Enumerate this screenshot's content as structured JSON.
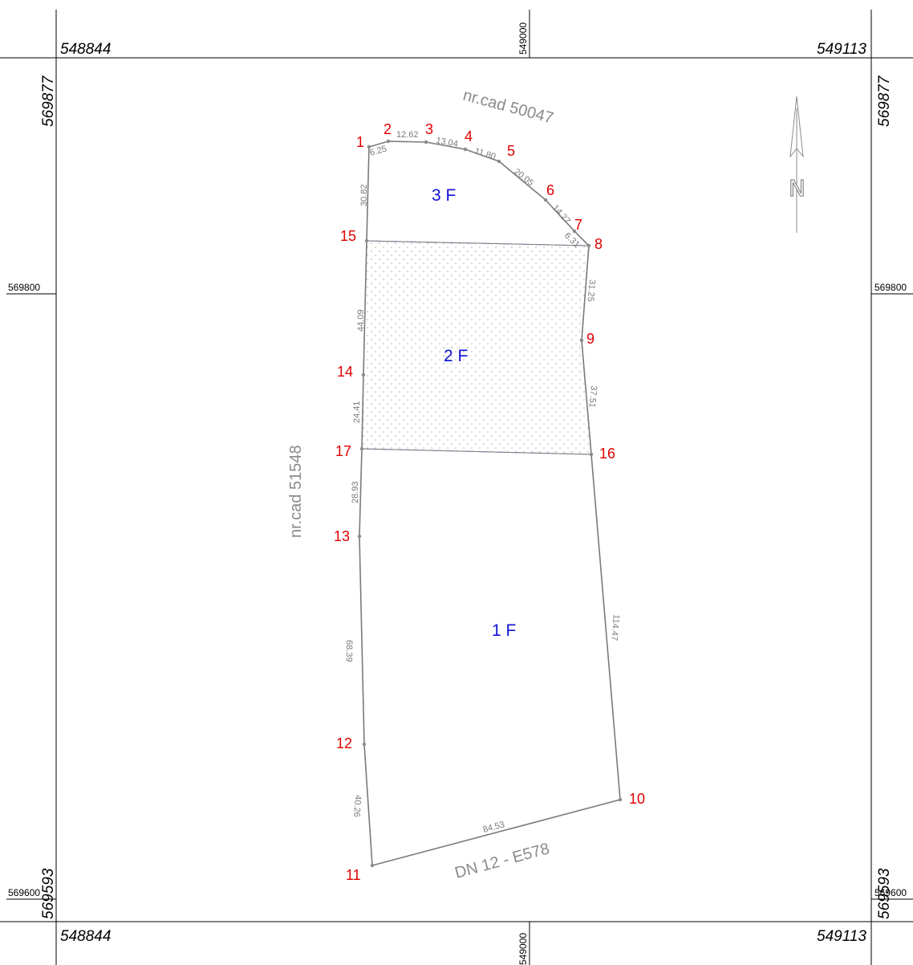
{
  "frame": {
    "x_left": "548844",
    "x_right": "549113",
    "x_mid": "549000",
    "y_top": "569877",
    "y_bottom": "569593",
    "y_mid": "569800",
    "y_low": "569600"
  },
  "vertices": [
    {
      "id": "v1",
      "label": "1"
    },
    {
      "id": "v2",
      "label": "2"
    },
    {
      "id": "v3",
      "label": "3"
    },
    {
      "id": "v4",
      "label": "4"
    },
    {
      "id": "v5",
      "label": "5"
    },
    {
      "id": "v6",
      "label": "6"
    },
    {
      "id": "v7",
      "label": "7"
    },
    {
      "id": "v8",
      "label": "8"
    },
    {
      "id": "v9",
      "label": "9"
    },
    {
      "id": "v10",
      "label": "10"
    },
    {
      "id": "v11",
      "label": "11"
    },
    {
      "id": "v12",
      "label": "12"
    },
    {
      "id": "v13",
      "label": "13"
    },
    {
      "id": "v14",
      "label": "14"
    },
    {
      "id": "v15",
      "label": "15"
    },
    {
      "id": "v16",
      "label": "16"
    },
    {
      "id": "v17",
      "label": "17"
    }
  ],
  "lengths": [
    {
      "id": "l1",
      "label": "6.25"
    },
    {
      "id": "l2",
      "label": "12.62"
    },
    {
      "id": "l3",
      "label": "13.04"
    },
    {
      "id": "l4",
      "label": "11.80"
    },
    {
      "id": "l5",
      "label": "20.05"
    },
    {
      "id": "l6",
      "label": "14.27"
    },
    {
      "id": "l7",
      "label": "6.31"
    },
    {
      "id": "l8",
      "label": "31.25"
    },
    {
      "id": "l9",
      "label": "37.51"
    },
    {
      "id": "l10",
      "label": "114.47"
    },
    {
      "id": "l11",
      "label": "84.53"
    },
    {
      "id": "l12",
      "label": "40.26"
    },
    {
      "id": "l13",
      "label": "68.39"
    },
    {
      "id": "l14",
      "label": "28.93"
    },
    {
      "id": "l15",
      "label": "24.41"
    },
    {
      "id": "l16",
      "label": "44.09"
    },
    {
      "id": "l17",
      "label": "30.82"
    }
  ],
  "lots": [
    {
      "id": "lot3",
      "label": "3 F"
    },
    {
      "id": "lot2",
      "label": "2 F"
    },
    {
      "id": "lot1",
      "label": "1 F"
    }
  ],
  "neighbors": {
    "north": "nr.cad 50047",
    "west": "nr.cad 51548",
    "south": "DN 12 - E578"
  },
  "north_arrow": {
    "letter": "N",
    "icon": "north-arrow-icon"
  },
  "colors": {
    "vertex_labels": "#e00000",
    "lot_labels": "#1010d8",
    "parcel_lines": "#7a7a7a",
    "hatched_lot_outline": "#1a1ad6"
  }
}
